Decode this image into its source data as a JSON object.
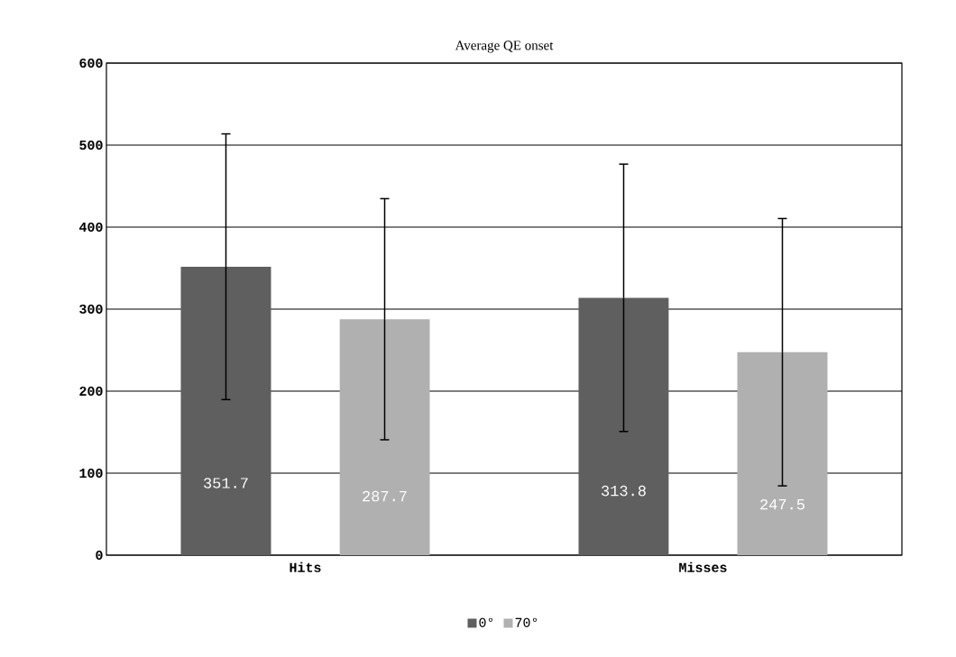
{
  "chart_data": {
    "type": "bar",
    "title": "Average QE onset",
    "categories": [
      "Hits",
      "Misses"
    ],
    "series": [
      {
        "name": "0°",
        "color": "#5f5f5f",
        "values": [
          351.7,
          313.8
        ],
        "errors": [
          162,
          163
        ]
      },
      {
        "name": "70°",
        "color": "#b0b0b0",
        "values": [
          287.7,
          247.5
        ],
        "errors": [
          147,
          163
        ]
      }
    ],
    "ylim": [
      0,
      600
    ],
    "yticks": [
      0,
      100,
      200,
      300,
      400,
      500,
      600
    ],
    "grid": "y",
    "legend": "bottom",
    "data_labels": true
  }
}
